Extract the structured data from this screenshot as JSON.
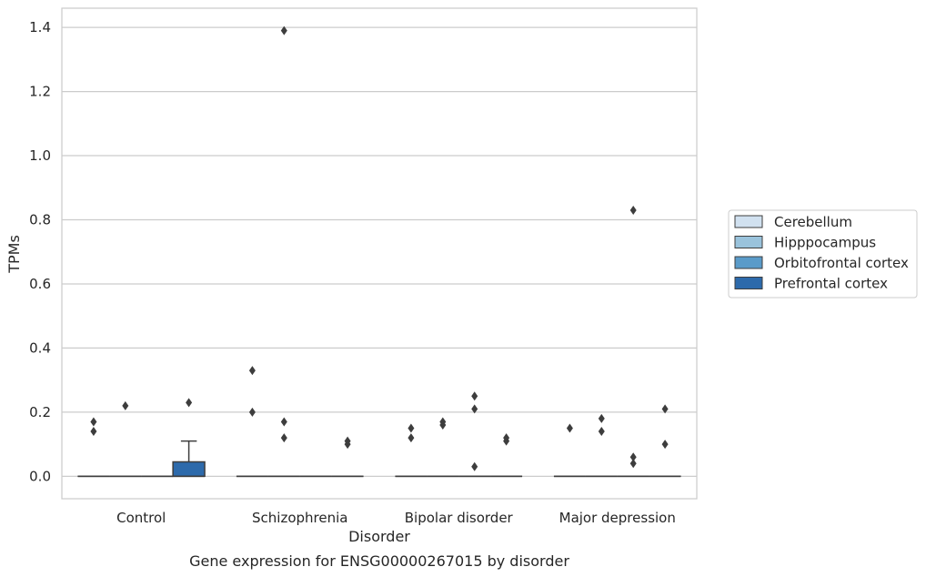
{
  "chart_data": {
    "type": "box",
    "xlabel": "Disorder",
    "ylabel": "TPMs",
    "caption": "Gene expression for ENSG00000267015 by disorder",
    "ylim": [
      -0.07,
      1.46
    ],
    "yticks": [
      "0.0",
      "0.2",
      "0.4",
      "0.6",
      "0.8",
      "1.0",
      "1.2",
      "1.4"
    ],
    "grid": "horizontal",
    "legend_placement": "right",
    "categories": [
      "Control",
      "Schizophrenia",
      "Bipolar disorder",
      "Major depression"
    ],
    "series": [
      {
        "name": "Cerebellum",
        "color": "#d1e1f0",
        "boxes": [
          {
            "q1": 0,
            "median": 0,
            "q3": 0,
            "whisker_low": 0,
            "whisker_high": 0,
            "outliers": [
              0.14,
              0.17
            ]
          },
          {
            "q1": 0,
            "median": 0,
            "q3": 0,
            "whisker_low": 0,
            "whisker_high": 0,
            "outliers": [
              0.2,
              0.33
            ]
          },
          {
            "q1": 0,
            "median": 0,
            "q3": 0,
            "whisker_low": 0,
            "whisker_high": 0,
            "outliers": [
              0.12,
              0.15
            ]
          },
          {
            "q1": 0,
            "median": 0,
            "q3": 0,
            "whisker_low": 0,
            "whisker_high": 0,
            "outliers": [
              0.15
            ]
          }
        ]
      },
      {
        "name": "Hipppocampus",
        "color": "#9ac3dc",
        "boxes": [
          {
            "q1": 0,
            "median": 0,
            "q3": 0,
            "whisker_low": 0,
            "whisker_high": 0,
            "outliers": [
              0.22
            ]
          },
          {
            "q1": 0,
            "median": 0,
            "q3": 0,
            "whisker_low": 0,
            "whisker_high": 0,
            "outliers": [
              0.12,
              0.17,
              1.39
            ]
          },
          {
            "q1": 0,
            "median": 0,
            "q3": 0,
            "whisker_low": 0,
            "whisker_high": 0,
            "outliers": [
              0.16,
              0.17
            ]
          },
          {
            "q1": 0,
            "median": 0,
            "q3": 0,
            "whisker_low": 0,
            "whisker_high": 0,
            "outliers": [
              0.14,
              0.18
            ]
          }
        ]
      },
      {
        "name": "Orbitofrontal cortex",
        "color": "#5a9bc9",
        "boxes": [
          {
            "q1": 0,
            "median": 0,
            "q3": 0,
            "whisker_low": 0,
            "whisker_high": 0,
            "outliers": []
          },
          {
            "q1": 0,
            "median": 0,
            "q3": 0,
            "whisker_low": 0,
            "whisker_high": 0,
            "outliers": []
          },
          {
            "q1": 0,
            "median": 0,
            "q3": 0,
            "whisker_low": 0,
            "whisker_high": 0,
            "outliers": [
              0.03,
              0.21,
              0.25
            ]
          },
          {
            "q1": 0,
            "median": 0,
            "q3": 0,
            "whisker_low": 0,
            "whisker_high": 0,
            "outliers": [
              0.04,
              0.06,
              0.83
            ]
          }
        ]
      },
      {
        "name": "Prefrontal cortex",
        "color": "#2d6aab",
        "boxes": [
          {
            "q1": 0,
            "median": 0,
            "q3": 0.045,
            "whisker_low": 0,
            "whisker_high": 0.11,
            "outliers": [
              0.23
            ]
          },
          {
            "q1": 0,
            "median": 0,
            "q3": 0,
            "whisker_low": 0,
            "whisker_high": 0,
            "outliers": [
              0.1,
              0.11
            ]
          },
          {
            "q1": 0,
            "median": 0,
            "q3": 0,
            "whisker_low": 0,
            "whisker_high": 0,
            "outliers": [
              0.11,
              0.12
            ]
          },
          {
            "q1": 0,
            "median": 0,
            "q3": 0,
            "whisker_low": 0,
            "whisker_high": 0,
            "outliers": [
              0.1,
              0.21
            ]
          }
        ]
      }
    ]
  }
}
